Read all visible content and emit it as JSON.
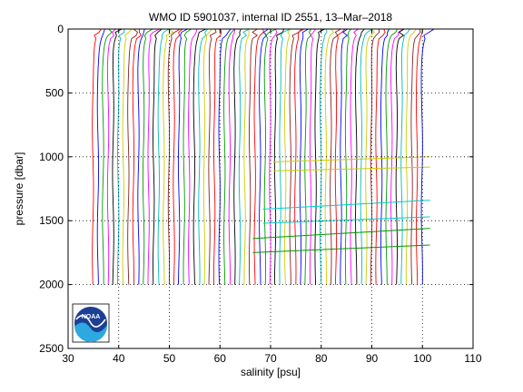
{
  "chart_data": {
    "type": "line",
    "title": "WMO ID 5901037, internal ID 2551, 13–Mar–2018",
    "xlabel": "salinity [psu]",
    "ylabel": "pressure [dbar]",
    "xlim": [
      30,
      110
    ],
    "ylim": [
      0,
      2500
    ],
    "y_reversed": true,
    "xticks": [
      30,
      40,
      50,
      60,
      70,
      80,
      90,
      100,
      110
    ],
    "yticks": [
      0,
      500,
      1000,
      1500,
      2000,
      2500
    ],
    "grid": "dotted",
    "profile_family": {
      "count": 66,
      "first_offset": 34.9,
      "offset_step": 1.0,
      "surface_extra": 1.6,
      "p_max": 2000,
      "colors": [
        "#ff0000",
        "#0000ff",
        "#009900",
        "#ff00ff",
        "#000000",
        "#00bbbb",
        "#cccc00",
        "#882222"
      ]
    },
    "highlight_segments": [
      {
        "color": "#cccc00",
        "x": [
          70.5,
          101.5
        ],
        "y": [
          1040,
          1000
        ]
      },
      {
        "color": "#cccc00",
        "x": [
          70.5,
          101.5
        ],
        "y": [
          1110,
          1080
        ]
      },
      {
        "color": "#00cccc",
        "x": [
          68.5,
          101.5
        ],
        "y": [
          1410,
          1340
        ]
      },
      {
        "color": "#00cccc",
        "x": [
          68.5,
          101.5
        ],
        "y": [
          1520,
          1470
        ]
      },
      {
        "color": "#009900",
        "x": [
          66.5,
          101.5
        ],
        "y": [
          1640,
          1560
        ]
      },
      {
        "color": "#009900",
        "x": [
          66.5,
          101.5
        ],
        "y": [
          1750,
          1690
        ]
      }
    ]
  },
  "logo": {
    "text": "NOAA"
  }
}
